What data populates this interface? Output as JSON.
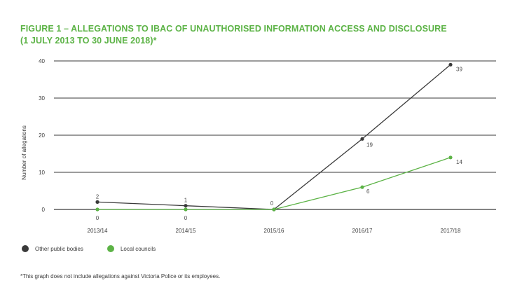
{
  "title_line1": "FIGURE 1 – ALLEGATIONS TO IBAC OF UNAUTHORISED INFORMATION ACCESS AND DISCLOSURE",
  "title_line2": "(1 JULY 2013 TO 30 JUNE 2018)*",
  "footnote": "*This graph does not include allegations against Victoria Police or its employees.",
  "colors": {
    "title": "#5cb346",
    "other_public_bodies": "#3a3a3a",
    "local_councils": "#5cb346",
    "grid": "#3a3a3a"
  },
  "chart_data": {
    "type": "line",
    "categories": [
      "2013/14",
      "2014/15",
      "2015/16",
      "2016/17",
      "2017/18"
    ],
    "ylabel": "Number of allegations",
    "xlabel": "",
    "ylim": [
      0,
      40
    ],
    "yticks": [
      0,
      10,
      20,
      30,
      40
    ],
    "grid": true,
    "legend_position": "bottom-left",
    "series": [
      {
        "name": "Other public bodies",
        "values": [
          2,
          1,
          0,
          19,
          39
        ],
        "color": "#3a3a3a",
        "labels": [
          "2",
          "1",
          "0",
          "19",
          "39"
        ]
      },
      {
        "name": "Local councils",
        "values": [
          0,
          0,
          0,
          6,
          14
        ],
        "color": "#5cb346",
        "labels": [
          "0",
          "0",
          "",
          "6",
          "14"
        ]
      }
    ]
  }
}
